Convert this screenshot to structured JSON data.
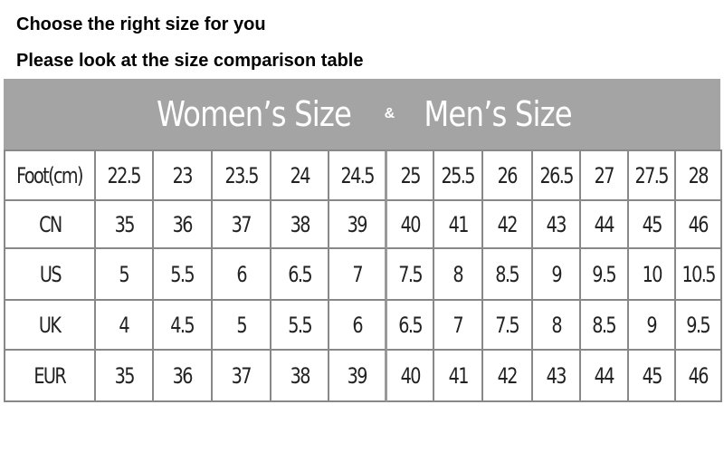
{
  "intro": {
    "line1": "Choose the right size for you",
    "line2": "Please look at the size comparison table"
  },
  "banner": {
    "women": "Women’s Size",
    "amp": "&",
    "men": "Men’s Size",
    "background": "#a4a4a4"
  },
  "table": {
    "rows": [
      {
        "label": "Foot(cm)",
        "values": [
          "22.5",
          "23",
          "23.5",
          "24",
          "24.5",
          "25",
          "25.5",
          "26",
          "26.5",
          "27",
          "27.5",
          "28"
        ]
      },
      {
        "label": "CN",
        "values": [
          "35",
          "36",
          "37",
          "38",
          "39",
          "40",
          "41",
          "42",
          "43",
          "44",
          "45",
          "46"
        ]
      },
      {
        "label": "US",
        "values": [
          "5",
          "5.5",
          "6",
          "6.5",
          "7",
          "7.5",
          "8",
          "8.5",
          "9",
          "9.5",
          "10",
          "10.5"
        ]
      },
      {
        "label": "UK",
        "values": [
          "4",
          "4.5",
          "5",
          "5.5",
          "6",
          "6.5",
          "7",
          "7.5",
          "8",
          "8.5",
          "9",
          "9.5"
        ]
      },
      {
        "label": "EUR",
        "values": [
          "35",
          "36",
          "37",
          "38",
          "39",
          "40",
          "41",
          "42",
          "43",
          "44",
          "45",
          "46"
        ]
      }
    ]
  }
}
